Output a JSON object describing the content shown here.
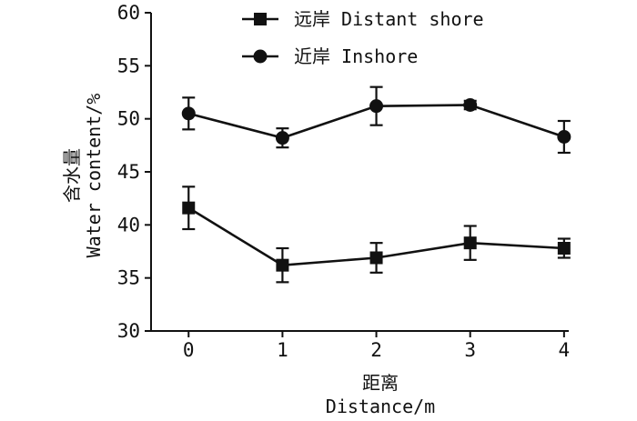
{
  "chart_data": {
    "type": "line",
    "x": [
      0,
      1,
      2,
      3,
      4
    ],
    "xlabel_cn": "距离",
    "xlabel_en": "Distance/m",
    "ylabel_cn": "含水量",
    "ylabel_en": "Water content/%",
    "xlim": [
      -0.4,
      4.05
    ],
    "ylim": [
      30,
      60
    ],
    "xticks": [
      "0",
      "1",
      "2",
      "3",
      "4"
    ],
    "yticks": [
      "30",
      "35",
      "40",
      "45",
      "50",
      "55",
      "60"
    ],
    "legend_position": "top",
    "grid": false,
    "series": [
      {
        "name": "远岸 Distant shore",
        "marker": "square",
        "values": [
          41.6,
          36.2,
          36.9,
          38.3,
          37.8
        ],
        "errors": [
          2.0,
          1.6,
          1.4,
          1.6,
          0.9
        ]
      },
      {
        "name": "近岸 Inshore",
        "marker": "circle",
        "values": [
          50.5,
          48.2,
          51.2,
          51.3,
          48.3
        ],
        "errors": [
          1.5,
          0.9,
          1.8,
          0.4,
          1.5
        ]
      }
    ]
  }
}
